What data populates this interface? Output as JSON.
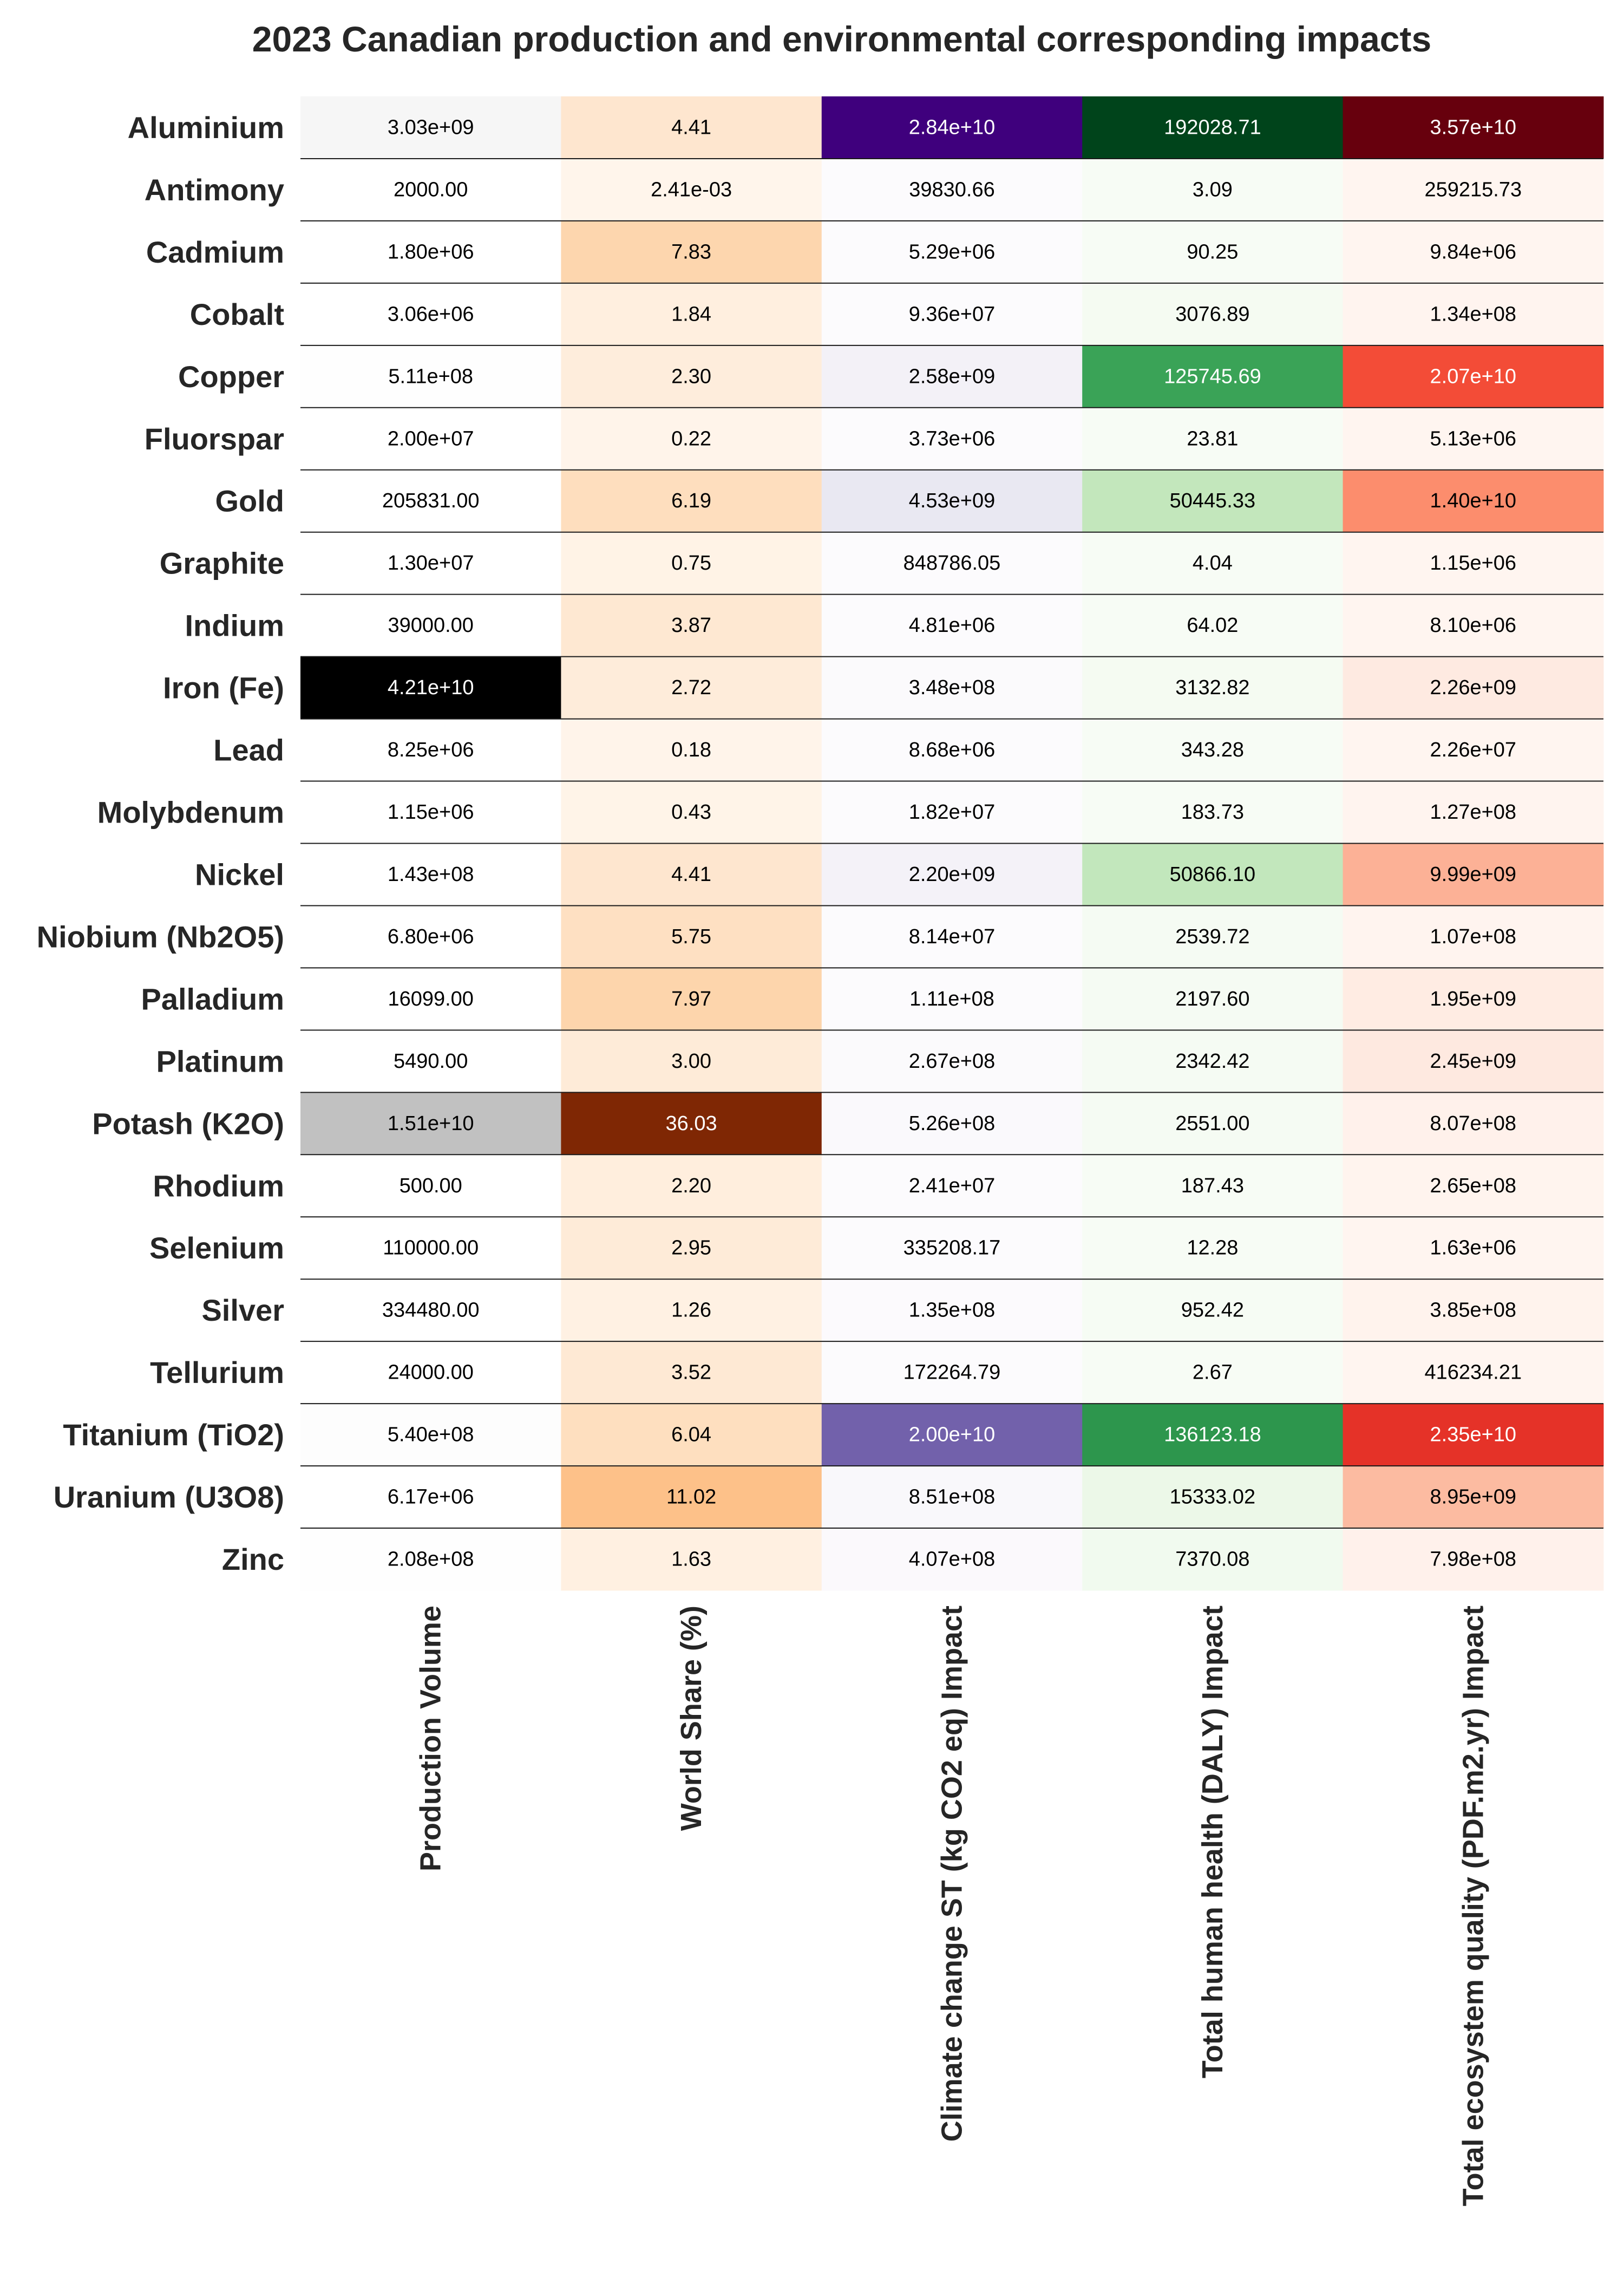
{
  "chart_data": {
    "type": "heatmap",
    "title": "2023 Canadian production and environmental corresponding impacts",
    "rows": [
      "Aluminium",
      "Antimony",
      "Cadmium",
      "Cobalt",
      "Copper",
      "Fluorspar",
      "Gold",
      "Graphite",
      "Indium",
      "Iron (Fe)",
      "Lead",
      "Molybdenum",
      "Nickel",
      "Niobium (Nb2O5)",
      "Palladium",
      "Platinum",
      "Potash (K2O)",
      "Rhodium",
      "Selenium",
      "Silver",
      "Tellurium",
      "Titanium (TiO2)",
      "Uranium (U3O8)",
      "Zinc"
    ],
    "columns": [
      {
        "name": "Production Volume",
        "colormap": "Greys",
        "labels": [
          "3.03e+09",
          "2000.00",
          "1.80e+06",
          "3.06e+06",
          "5.11e+08",
          "2.00e+07",
          "205831.00",
          "1.30e+07",
          "39000.00",
          "4.21e+10",
          "8.25e+06",
          "1.15e+06",
          "1.43e+08",
          "6.80e+06",
          "16099.00",
          "5490.00",
          "1.51e+10",
          "500.00",
          "110000.00",
          "334480.00",
          "24000.00",
          "5.40e+08",
          "6.17e+06",
          "2.08e+08"
        ],
        "values": [
          3030000000.0,
          2000,
          1800000.0,
          3060000.0,
          511000000.0,
          20000000.0,
          205831,
          13000000.0,
          39000,
          42100000000.0,
          8250000.0,
          1150000.0,
          143000000.0,
          6800000.0,
          16099,
          5490,
          15100000000.0,
          500,
          110000,
          334480,
          24000,
          540000000.0,
          6170000.0,
          208000000.0
        ]
      },
      {
        "name": "World Share (%)",
        "colormap": "Oranges",
        "labels": [
          "4.41",
          "2.41e-03",
          "7.83",
          "1.84",
          "2.30",
          "0.22",
          "6.19",
          "0.75",
          "3.87",
          "2.72",
          "0.18",
          "0.43",
          "4.41",
          "5.75",
          "7.97",
          "3.00",
          "36.03",
          "2.20",
          "2.95",
          "1.26",
          "3.52",
          "6.04",
          "11.02",
          "1.63"
        ],
        "values": [
          4.41,
          0.00241,
          7.83,
          1.84,
          2.3,
          0.22,
          6.19,
          0.75,
          3.87,
          2.72,
          0.18,
          0.43,
          4.41,
          5.75,
          7.97,
          3.0,
          36.03,
          2.2,
          2.95,
          1.26,
          3.52,
          6.04,
          11.02,
          1.63
        ]
      },
      {
        "name": "Climate change ST (kg CO2 eq) Impact",
        "colormap": "Purples",
        "labels": [
          "2.84e+10",
          "39830.66",
          "5.29e+06",
          "9.36e+07",
          "2.58e+09",
          "3.73e+06",
          "4.53e+09",
          "848786.05",
          "4.81e+06",
          "3.48e+08",
          "8.68e+06",
          "1.82e+07",
          "2.20e+09",
          "8.14e+07",
          "1.11e+08",
          "2.67e+08",
          "5.26e+08",
          "2.41e+07",
          "335208.17",
          "1.35e+08",
          "172264.79",
          "2.00e+10",
          "8.51e+08",
          "4.07e+08"
        ],
        "values": [
          28400000000.0,
          39830.66,
          5290000.0,
          93600000.0,
          2580000000.0,
          3730000.0,
          4530000000.0,
          848786.05,
          4810000.0,
          348000000.0,
          8680000.0,
          18200000.0,
          2200000000.0,
          81400000.0,
          111000000.0,
          267000000.0,
          526000000.0,
          24100000.0,
          335208.17,
          135000000.0,
          172264.79,
          20000000000.0,
          851000000.0,
          407000000.0
        ]
      },
      {
        "name": "Total human health (DALY) Impact",
        "colormap": "Greens",
        "labels": [
          "192028.71",
          "3.09",
          "90.25",
          "3076.89",
          "125745.69",
          "23.81",
          "50445.33",
          "4.04",
          "64.02",
          "3132.82",
          "343.28",
          "183.73",
          "50866.10",
          "2539.72",
          "2197.60",
          "2342.42",
          "2551.00",
          "187.43",
          "12.28",
          "952.42",
          "2.67",
          "136123.18",
          "15333.02",
          "7370.08"
        ],
        "values": [
          192028.71,
          3.09,
          90.25,
          3076.89,
          125745.69,
          23.81,
          50445.33,
          4.04,
          64.02,
          3132.82,
          343.28,
          183.73,
          50866.1,
          2539.72,
          2197.6,
          2342.42,
          2551.0,
          187.43,
          12.28,
          952.42,
          2.67,
          136123.18,
          15333.02,
          7370.08
        ]
      },
      {
        "name": "Total ecosystem quality (PDF.m2.yr) Impact",
        "colormap": "Reds",
        "labels": [
          "3.57e+10",
          "259215.73",
          "9.84e+06",
          "1.34e+08",
          "2.07e+10",
          "5.13e+06",
          "1.40e+10",
          "1.15e+06",
          "8.10e+06",
          "2.26e+09",
          "2.26e+07",
          "1.27e+08",
          "9.99e+09",
          "1.07e+08",
          "1.95e+09",
          "2.45e+09",
          "8.07e+08",
          "2.65e+08",
          "1.63e+06",
          "3.85e+08",
          "416234.21",
          "2.35e+10",
          "8.95e+09",
          "7.98e+08"
        ],
        "values": [
          35700000000.0,
          259215.73,
          9840000.0,
          134000000.0,
          20700000000.0,
          5130000.0,
          14000000000.0,
          1150000.0,
          8100000.0,
          2260000000.0,
          22600000.0,
          127000000.0,
          9990000000.0,
          107000000.0,
          1950000000.0,
          2450000000.0,
          807000000.0,
          265000000.0,
          1630000.0,
          385000000.0,
          416234.21,
          23500000000.0,
          8950000000.0,
          798000000.0
        ]
      }
    ],
    "colormap_colors": {
      "Greys": [
        "#ffffff",
        "#f0f0f0",
        "#d9d9d9",
        "#bdbdbd",
        "#969696",
        "#737373",
        "#525252",
        "#252525",
        "#000000"
      ],
      "Oranges": [
        "#fff5eb",
        "#fee6ce",
        "#fdd0a2",
        "#fdae6b",
        "#fd8d3c",
        "#f16913",
        "#d94801",
        "#a63603",
        "#7f2704"
      ],
      "Purples": [
        "#fcfbfd",
        "#efedf5",
        "#dadaeb",
        "#bcbddc",
        "#9e9ac8",
        "#807dba",
        "#6a51a3",
        "#54278f",
        "#3f007d"
      ],
      "Greens": [
        "#f7fcf5",
        "#e5f5e0",
        "#c7e9c0",
        "#a1d99b",
        "#74c476",
        "#41ab5d",
        "#238b45",
        "#006d2c",
        "#00441b"
      ],
      "Reds": [
        "#fff5f0",
        "#fee0d2",
        "#fcbba1",
        "#fc9272",
        "#fb6a4a",
        "#ef3b2c",
        "#cb181d",
        "#a50f15",
        "#67000d"
      ]
    },
    "grid_line_color": "#1a1a1a"
  }
}
